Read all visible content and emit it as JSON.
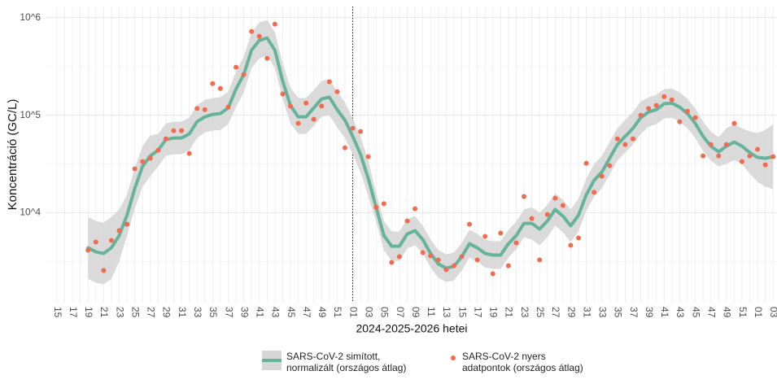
{
  "chart_data": {
    "type": "line",
    "y_label": "Koncentráció (GC/L)",
    "x_label": "2024-2025-2026 hetei",
    "log_y": true,
    "grid": true,
    "legend_position": "bottom",
    "ylim": [
      1200,
      1300000
    ],
    "yticks": [
      {
        "value": 10000,
        "label": "10^4"
      },
      {
        "value": 100000,
        "label": "10^5"
      },
      {
        "value": 1000000,
        "label": "10^6"
      }
    ],
    "vline": {
      "category_index": 38,
      "style": "dotted"
    },
    "categories": [
      "15",
      null,
      "17",
      null,
      "19",
      null,
      "21",
      null,
      "23",
      null,
      "25",
      null,
      "27",
      null,
      "29",
      null,
      "31",
      null,
      "33",
      null,
      "35",
      null,
      "37",
      null,
      "39",
      null,
      "41",
      null,
      "43",
      null,
      "45",
      null,
      "47",
      null,
      "49",
      null,
      "51",
      null,
      "01",
      null,
      "03",
      null,
      "05",
      null,
      "07",
      null,
      "09",
      null,
      "11",
      null,
      "13",
      null,
      "15",
      null,
      "17",
      null,
      "19",
      null,
      "21",
      null,
      "23",
      null,
      "25",
      null,
      "27",
      null,
      "29",
      null,
      "31",
      null,
      "33",
      null,
      "35",
      null,
      "37",
      null,
      "39",
      null,
      "41",
      null,
      "43",
      null,
      "45",
      null,
      "47",
      null,
      "49",
      null,
      "51",
      null,
      "01",
      null,
      "03"
    ],
    "series": [
      {
        "name": "SARS-CoV-2 simított,\n normalizált (országos átlag)",
        "type": "line",
        "color": "#66b39b",
        "band_color": "#d6d6d6",
        "values": [
          null,
          null,
          null,
          null,
          4380,
          3980,
          3830,
          4380,
          5840,
          9440,
          17800,
          29900,
          38300,
          43800,
          56200,
          58400,
          58400,
          64300,
          85800,
          96200,
          102000,
          104000,
          119000,
          185000,
          261000,
          464000,
          584000,
          619000,
          464000,
          224000,
          126000,
          96200,
          96200,
          119000,
          147000,
          153000,
          114000,
          89100,
          60700,
          39800,
          22400,
          11400,
          5840,
          4550,
          4550,
          6070,
          6560,
          5310,
          3830,
          2990,
          2710,
          2820,
          3550,
          4820,
          4380,
          3830,
          3690,
          3690,
          4820,
          5840,
          7790,
          7790,
          6810,
          8250,
          10800,
          9260,
          7360,
          9440,
          15300,
          21500,
          26100,
          36200,
          50100,
          60700,
          73600,
          94400,
          108000,
          114000,
          131000,
          133000,
          121000,
          104000,
          82500,
          60700,
          48200,
          42200,
          48200,
          53100,
          48200,
          41400,
          36900,
          36200,
          37600
        ],
        "upper": [
          null,
          null,
          null,
          null,
          9090,
          8250,
          7940,
          9090,
          10800,
          15300,
          28700,
          48200,
          61900,
          64300,
          82500,
          85800,
          85800,
          94400,
          126000,
          144000,
          150000,
          153000,
          174000,
          282000,
          398000,
          708000,
          891000,
          944000,
          708000,
          341000,
          192000,
          150000,
          150000,
          181000,
          224000,
          233000,
          174000,
          136000,
          92600,
          60700,
          34200,
          16200,
          8250,
          6430,
          6430,
          8580,
          9260,
          7360,
          5310,
          4140,
          3760,
          3910,
          4920,
          6680,
          6070,
          5310,
          5110,
          5110,
          6680,
          8100,
          10800,
          11400,
          10000,
          12100,
          15800,
          13600,
          10800,
          13900,
          22400,
          31600,
          38300,
          53100,
          73600,
          89100,
          108000,
          138000,
          153000,
          162000,
          185000,
          188000,
          171000,
          147000,
          117000,
          85800,
          68100,
          59600,
          73600,
          80900,
          73600,
          68100,
          65600,
          70800,
          80900
        ],
        "lower": [
          null,
          null,
          null,
          null,
          2110,
          1920,
          1850,
          2110,
          3160,
          5840,
          11000,
          18500,
          23700,
          29900,
          38300,
          39800,
          39800,
          43800,
          58400,
          66800,
          69400,
          70800,
          80900,
          121000,
          171000,
          304000,
          383000,
          406000,
          304000,
          147000,
          82500,
          64300,
          64300,
          77900,
          96200,
          100000,
          75000,
          58400,
          39800,
          26100,
          14700,
          8100,
          4140,
          3220,
          3220,
          4300,
          4640,
          3830,
          2760,
          2150,
          1960,
          2030,
          2560,
          3480,
          3160,
          2760,
          2660,
          2660,
          3480,
          4220,
          5620,
          5310,
          4640,
          5620,
          7360,
          6310,
          5010,
          6430,
          10400,
          14700,
          17800,
          24600,
          34200,
          41400,
          50100,
          64300,
          76400,
          80900,
          92600,
          94400,
          85800,
          73600,
          58400,
          43000,
          34200,
          29900,
          31600,
          34800,
          31600,
          25100,
          20700,
          18500,
          17400
        ]
      },
      {
        "name": "SARS-CoV-2 nyers\n adatpontok (országos átlag)",
        "type": "scatter",
        "color": "#f26b4f",
        "values": [
          null,
          null,
          null,
          null,
          4140,
          5010,
          2560,
          5210,
          6560,
          7640,
          28200,
          33500,
          36200,
          43800,
          57300,
          69400,
          69400,
          40600,
          117000,
          114000,
          211000,
          188000,
          121000,
          310000,
          261000,
          722000,
          643000,
          383000,
          858000,
          165000,
          124000,
          82500,
          133000,
          90900,
          124000,
          220000,
          174000,
          46400,
          73600,
          68100,
          37600,
          11400,
          12400,
          3100,
          3550,
          8250,
          11000,
          3910,
          3620,
          3290,
          2610,
          2870,
          3550,
          7640,
          3290,
          5730,
          2370,
          6190,
          2870,
          4920,
          14700,
          8740,
          3290,
          9620,
          14100,
          11900,
          4640,
          5520,
          32200,
          16200,
          23700,
          30400,
          57300,
          50100,
          57300,
          100000,
          117000,
          126000,
          155000,
          144000,
          85800,
          110000,
          94400,
          38300,
          50100,
          38300,
          50100,
          82500,
          33500,
          38300,
          44700,
          31000,
          37600
        ]
      }
    ]
  }
}
